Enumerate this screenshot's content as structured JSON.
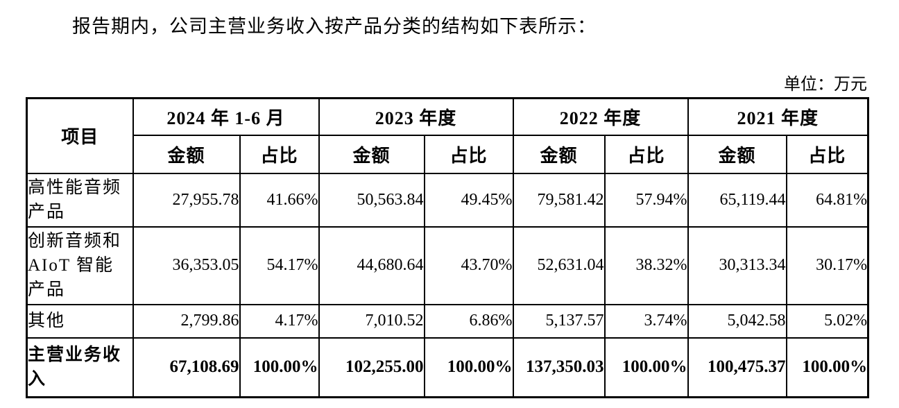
{
  "page": {
    "intro": "报告期内，公司主营业务收入按产品分类的结构如下表所示：",
    "unit_label": "单位：万元"
  },
  "table": {
    "corner_header": "项目",
    "periods": [
      "2024 年 1-6 月",
      "2023 年度",
      "2022 年度",
      "2021 年度"
    ],
    "subheaders": {
      "amount": "金额",
      "ratio": "占比"
    },
    "rows": [
      {
        "label": "高性能音频产品",
        "values": [
          "27,955.78",
          "41.66%",
          "50,563.84",
          "49.45%",
          "79,581.42",
          "57.94%",
          "65,119.44",
          "64.81%"
        ]
      },
      {
        "label": "创新音频和AIoT 智能产品",
        "values": [
          "36,353.05",
          "54.17%",
          "44,680.64",
          "43.70%",
          "52,631.04",
          "38.32%",
          "30,313.34",
          "30.17%"
        ]
      },
      {
        "label": "其他",
        "values": [
          "2,799.86",
          "4.17%",
          "7,010.52",
          "6.86%",
          "5,137.57",
          "3.74%",
          "5,042.58",
          "5.02%"
        ]
      }
    ],
    "total_row": {
      "label": "主营业务收入",
      "values": [
        "67,108.69",
        "100.00%",
        "102,255.00",
        "100.00%",
        "137,350.03",
        "100.00%",
        "100,475.37",
        "100.00%"
      ]
    }
  }
}
